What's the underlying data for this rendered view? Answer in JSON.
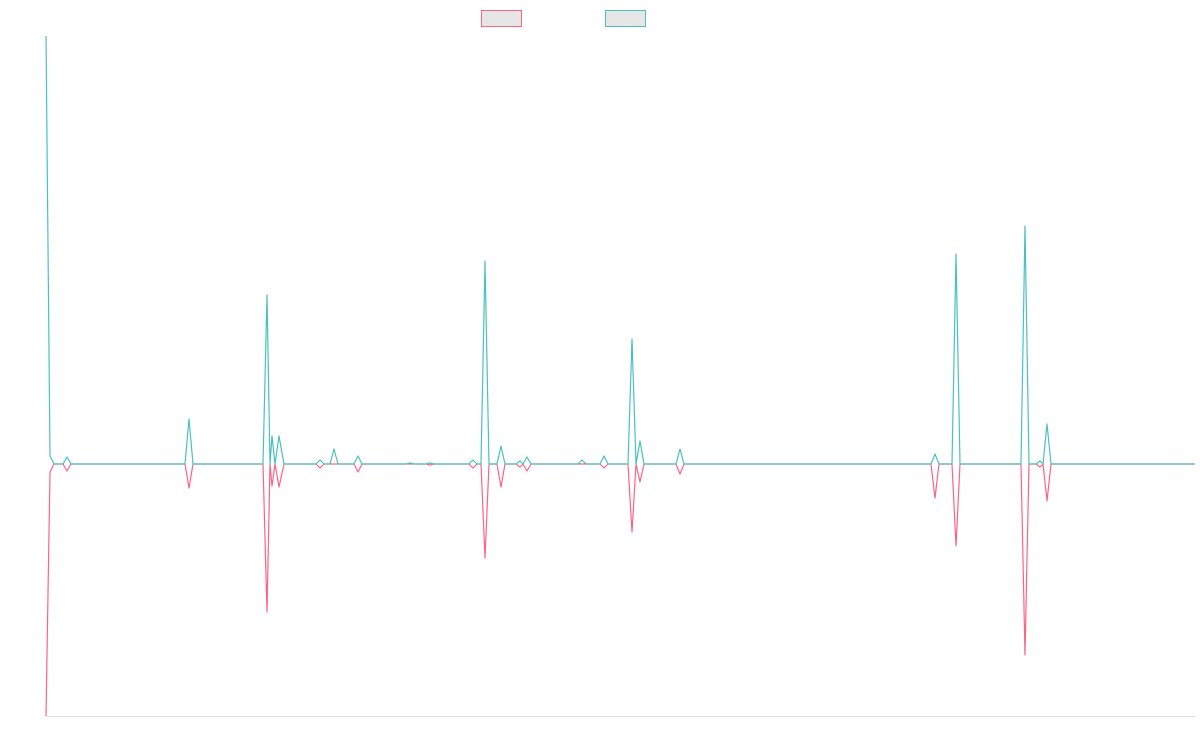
{
  "chart_data": {
    "type": "line",
    "x": [
      46,
      50,
      54,
      63,
      67,
      71,
      185,
      189,
      193,
      263,
      267,
      270,
      272,
      275,
      279,
      284,
      316,
      320,
      324,
      330,
      334,
      338,
      354,
      358,
      362,
      406,
      410,
      414,
      426,
      430,
      434,
      469,
      473,
      477,
      481,
      485,
      489,
      497,
      501,
      505,
      516,
      520,
      523,
      527,
      531,
      578,
      582,
      586,
      600,
      604,
      608,
      628,
      632,
      636,
      640,
      644,
      676,
      680,
      684,
      931,
      935,
      939,
      952,
      956,
      960,
      1021,
      1025,
      1029,
      1036,
      1040,
      1043,
      1047,
      1051,
      1195
    ],
    "series": [
      {
        "color": "#ff6384",
        "legend_fill": "#e6e6e6",
        "values": [
          -252,
          -8,
          0,
          0,
          -7,
          0,
          0,
          -24,
          0,
          0,
          -148,
          0,
          -22,
          0,
          -23,
          0,
          0,
          -4,
          0,
          0,
          0,
          0,
          0,
          -8,
          0,
          0,
          0,
          0,
          0,
          -1,
          0,
          0,
          -4,
          0,
          0,
          -94,
          0,
          0,
          -23,
          0,
          0,
          -3,
          0,
          -7,
          0,
          0,
          0,
          0,
          0,
          -4,
          0,
          0,
          -68,
          0,
          -18,
          0,
          0,
          -10,
          0,
          0,
          -34,
          0,
          0,
          -82,
          0,
          0,
          -191,
          0,
          0,
          -3,
          0,
          -37,
          0,
          0
        ]
      },
      {
        "color": "#4bc0c0",
        "legend_fill": "#e6e6e6",
        "values": [
          428,
          8,
          0,
          0,
          7,
          0,
          0,
          45,
          0,
          0,
          169,
          0,
          28,
          0,
          28,
          0,
          0,
          4,
          0,
          0,
          15,
          0,
          0,
          8,
          0,
          0,
          1,
          0,
          0,
          1,
          0,
          0,
          4,
          0,
          0,
          203,
          0,
          0,
          18,
          0,
          0,
          3,
          0,
          7,
          0,
          0,
          4,
          0,
          0,
          8,
          0,
          0,
          125,
          0,
          23,
          0,
          0,
          15,
          0,
          0,
          10,
          0,
          0,
          210,
          0,
          0,
          238,
          0,
          0,
          3,
          0,
          40,
          0,
          0
        ]
      }
    ],
    "xlim": [
      46,
      1195
    ],
    "ylim": [
      -252,
      428
    ]
  }
}
